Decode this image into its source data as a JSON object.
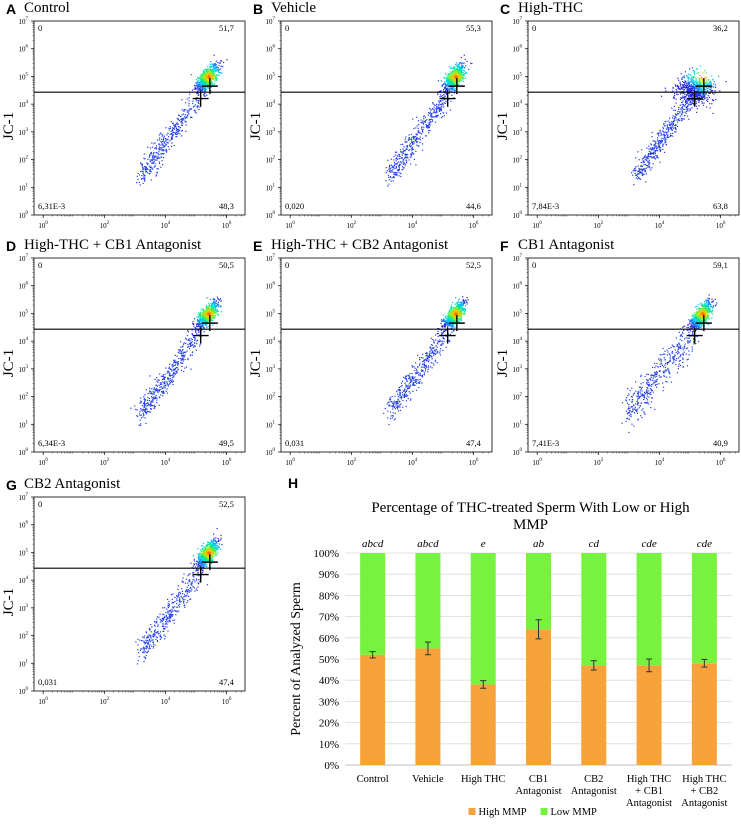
{
  "flow_panels": [
    {
      "letter": "A",
      "title": "Control",
      "q_ul": "0",
      "q_ur": "51,7",
      "q_ll": "6,31E-3",
      "q_lr": "48,3",
      "seed": 11,
      "gate_y": 27000,
      "spread": "tight"
    },
    {
      "letter": "B",
      "title": "Vehicle",
      "q_ul": "0",
      "q_ur": "55,3",
      "q_ll": "0,020",
      "q_lr": "44,6",
      "seed": 23,
      "gate_y": 27000,
      "spread": "tight"
    },
    {
      "letter": "C",
      "title": "High-THC",
      "q_ul": "0",
      "q_ur": "36,2",
      "q_ll": "7,84E-3",
      "q_lr": "63,8",
      "seed": 37,
      "gate_y": 27000,
      "spread": "wide"
    },
    {
      "letter": "D",
      "title": "High-THC + CB1 Antagonist",
      "q_ul": "0",
      "q_ur": "50,5",
      "q_ll": "6,34E-3",
      "q_lr": "49,5",
      "seed": 41,
      "gate_y": 27000,
      "spread": "tight"
    },
    {
      "letter": "E",
      "title": "High-THC + CB2 Antagonist",
      "q_ul": "0",
      "q_ur": "52,5",
      "q_ll": "0,031",
      "q_lr": "47,4",
      "seed": 53,
      "gate_y": 27000,
      "spread": "tight"
    },
    {
      "letter": "F",
      "title": "CB1 Antagonist",
      "q_ul": "0",
      "q_ur": "59,1",
      "q_ll": "7,41E-3",
      "q_lr": "40,9",
      "seed": 67,
      "gate_y": 27000,
      "spread": "scatter"
    },
    {
      "letter": "G",
      "title": "CB2 Antagonist",
      "q_ul": "0",
      "q_ur": "52,5",
      "q_ll": "0,031",
      "q_lr": "47,4",
      "seed": 79,
      "gate_y": 27000,
      "spread": "tight"
    }
  ],
  "flow_axis": {
    "ylabel": "JC-1",
    "y_ticks": [
      {
        "base": "10",
        "exp": "0"
      },
      {
        "base": "10",
        "exp": "1"
      },
      {
        "base": "10",
        "exp": "2"
      },
      {
        "base": "10",
        "exp": "3"
      },
      {
        "base": "10",
        "exp": "4"
      },
      {
        "base": "10",
        "exp": "5"
      },
      {
        "base": "10",
        "exp": "6"
      },
      {
        "base": "10",
        "exp": "7"
      }
    ],
    "x_ticks": [
      {
        "base": "10",
        "exp": "0"
      },
      {
        "base": "10",
        "exp": "2"
      },
      {
        "base": "10",
        "exp": "4"
      },
      {
        "base": "10",
        "exp": "6"
      }
    ]
  },
  "chart_data": {
    "letter": "H",
    "type": "bar",
    "stacked": true,
    "title": "Percentage of THC-treated Sperm With Low or High MMP",
    "title_lines": [
      "Percentage of THC-treated Sperm With Low or High",
      "MMP"
    ],
    "ylabel": "Percent of Analyzed Sperm",
    "xlabel": "",
    "ylim": [
      0,
      100
    ],
    "y_tick_labels": [
      "0%",
      "10%",
      "20%",
      "30%",
      "40%",
      "50%",
      "60%",
      "70%",
      "80%",
      "90%",
      "100%"
    ],
    "categories": [
      "Control",
      "Vehicle",
      "High THC",
      "CB1 Antagonist",
      "CB2 Antagonist",
      "High THC + CB1 Antagonist",
      "High THC + CB2 Antagonist"
    ],
    "category_lines": [
      [
        "Control"
      ],
      [
        "Vehicle"
      ],
      [
        "High THC"
      ],
      [
        "CB1",
        "Antagonist"
      ],
      [
        "CB2",
        "Antagonist"
      ],
      [
        "High THC",
        "+ CB1",
        "Antagonist"
      ],
      [
        "High THC",
        "+ CB2",
        "Antagonist"
      ]
    ],
    "series": [
      {
        "name": "High MMP",
        "color": "#F7A23A",
        "values": [
          52,
          55,
          38,
          64,
          47,
          47,
          48
        ],
        "errors": [
          1.5,
          3,
          1.8,
          4.5,
          2.2,
          3,
          1.8
        ]
      },
      {
        "name": "Low MMP",
        "color": "#77F23F",
        "values": [
          48,
          45,
          62,
          36,
          53,
          53,
          52
        ]
      }
    ],
    "significance": [
      "abcd",
      "abcd",
      "e",
      "ab",
      "cd",
      "cde",
      "cde"
    ],
    "legend_position": "bottom",
    "grid": true
  }
}
